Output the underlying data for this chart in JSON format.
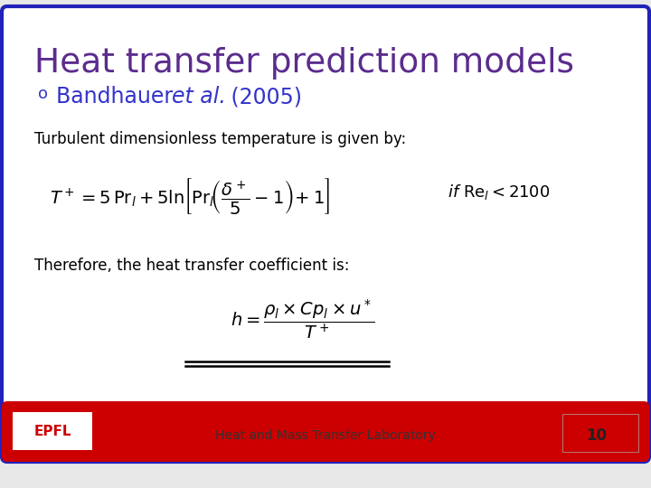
{
  "title": "Heat transfer prediction models",
  "title_color": "#5B2C8D",
  "bullet_color": "#3333CC",
  "body_color": "#000000",
  "body_text1": "Turbulent dimensionless temperature is given by:",
  "body_text2": "Therefore, the heat transfer coefficient is:",
  "footer_text": "Heat and Mass Transfer Laboratory",
  "footer_number": "10",
  "background_color": "#FFFFFF",
  "border_color": "#2222BB",
  "footer_bar_color": "#CC0000",
  "slide_bg": "#E8E8E8"
}
